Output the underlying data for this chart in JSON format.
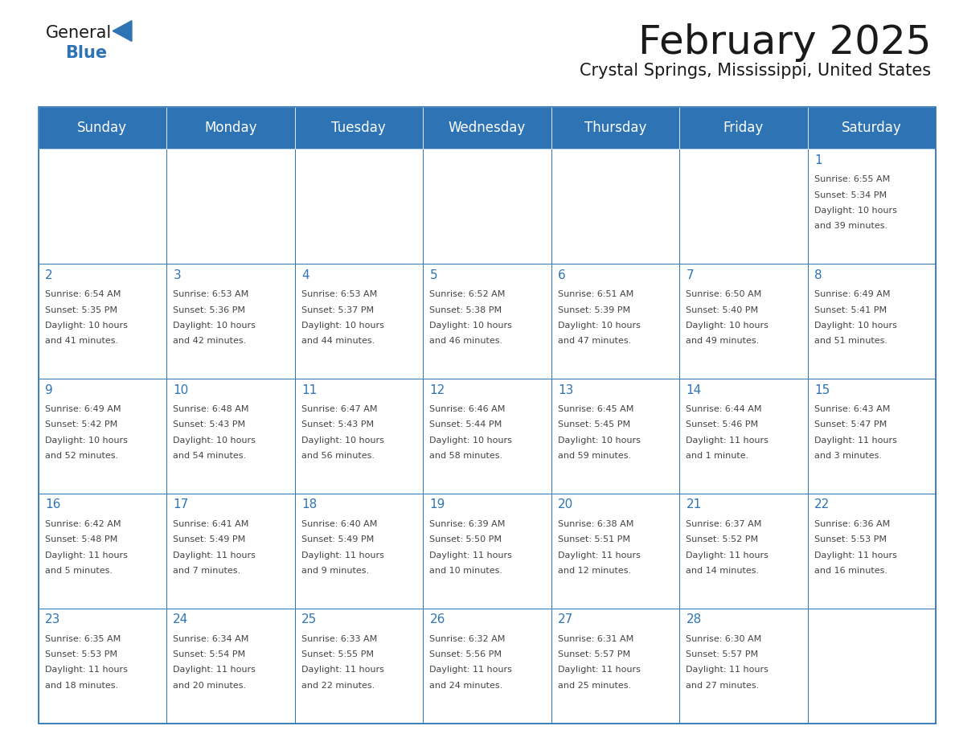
{
  "title": "February 2025",
  "subtitle": "Crystal Springs, Mississippi, United States",
  "header_color": "#2E74B5",
  "header_text_color": "#FFFFFF",
  "cell_bg_color": "#FFFFFF",
  "cell_border_color": "#2E74B5",
  "day_number_color": "#2E74B5",
  "info_text_color": "#444444",
  "days_of_week": [
    "Sunday",
    "Monday",
    "Tuesday",
    "Wednesday",
    "Thursday",
    "Friday",
    "Saturday"
  ],
  "logo_color": "#2E74B5",
  "calendar_data": [
    [
      null,
      null,
      null,
      null,
      null,
      null,
      {
        "day": 1,
        "sunrise": "6:55 AM",
        "sunset": "5:34 PM",
        "daylight_l1": "Daylight: 10 hours",
        "daylight_l2": "and 39 minutes."
      }
    ],
    [
      {
        "day": 2,
        "sunrise": "6:54 AM",
        "sunset": "5:35 PM",
        "daylight_l1": "Daylight: 10 hours",
        "daylight_l2": "and 41 minutes."
      },
      {
        "day": 3,
        "sunrise": "6:53 AM",
        "sunset": "5:36 PM",
        "daylight_l1": "Daylight: 10 hours",
        "daylight_l2": "and 42 minutes."
      },
      {
        "day": 4,
        "sunrise": "6:53 AM",
        "sunset": "5:37 PM",
        "daylight_l1": "Daylight: 10 hours",
        "daylight_l2": "and 44 minutes."
      },
      {
        "day": 5,
        "sunrise": "6:52 AM",
        "sunset": "5:38 PM",
        "daylight_l1": "Daylight: 10 hours",
        "daylight_l2": "and 46 minutes."
      },
      {
        "day": 6,
        "sunrise": "6:51 AM",
        "sunset": "5:39 PM",
        "daylight_l1": "Daylight: 10 hours",
        "daylight_l2": "and 47 minutes."
      },
      {
        "day": 7,
        "sunrise": "6:50 AM",
        "sunset": "5:40 PM",
        "daylight_l1": "Daylight: 10 hours",
        "daylight_l2": "and 49 minutes."
      },
      {
        "day": 8,
        "sunrise": "6:49 AM",
        "sunset": "5:41 PM",
        "daylight_l1": "Daylight: 10 hours",
        "daylight_l2": "and 51 minutes."
      }
    ],
    [
      {
        "day": 9,
        "sunrise": "6:49 AM",
        "sunset": "5:42 PM",
        "daylight_l1": "Daylight: 10 hours",
        "daylight_l2": "and 52 minutes."
      },
      {
        "day": 10,
        "sunrise": "6:48 AM",
        "sunset": "5:43 PM",
        "daylight_l1": "Daylight: 10 hours",
        "daylight_l2": "and 54 minutes."
      },
      {
        "day": 11,
        "sunrise": "6:47 AM",
        "sunset": "5:43 PM",
        "daylight_l1": "Daylight: 10 hours",
        "daylight_l2": "and 56 minutes."
      },
      {
        "day": 12,
        "sunrise": "6:46 AM",
        "sunset": "5:44 PM",
        "daylight_l1": "Daylight: 10 hours",
        "daylight_l2": "and 58 minutes."
      },
      {
        "day": 13,
        "sunrise": "6:45 AM",
        "sunset": "5:45 PM",
        "daylight_l1": "Daylight: 10 hours",
        "daylight_l2": "and 59 minutes."
      },
      {
        "day": 14,
        "sunrise": "6:44 AM",
        "sunset": "5:46 PM",
        "daylight_l1": "Daylight: 11 hours",
        "daylight_l2": "and 1 minute."
      },
      {
        "day": 15,
        "sunrise": "6:43 AM",
        "sunset": "5:47 PM",
        "daylight_l1": "Daylight: 11 hours",
        "daylight_l2": "and 3 minutes."
      }
    ],
    [
      {
        "day": 16,
        "sunrise": "6:42 AM",
        "sunset": "5:48 PM",
        "daylight_l1": "Daylight: 11 hours",
        "daylight_l2": "and 5 minutes."
      },
      {
        "day": 17,
        "sunrise": "6:41 AM",
        "sunset": "5:49 PM",
        "daylight_l1": "Daylight: 11 hours",
        "daylight_l2": "and 7 minutes."
      },
      {
        "day": 18,
        "sunrise": "6:40 AM",
        "sunset": "5:49 PM",
        "daylight_l1": "Daylight: 11 hours",
        "daylight_l2": "and 9 minutes."
      },
      {
        "day": 19,
        "sunrise": "6:39 AM",
        "sunset": "5:50 PM",
        "daylight_l1": "Daylight: 11 hours",
        "daylight_l2": "and 10 minutes."
      },
      {
        "day": 20,
        "sunrise": "6:38 AM",
        "sunset": "5:51 PM",
        "daylight_l1": "Daylight: 11 hours",
        "daylight_l2": "and 12 minutes."
      },
      {
        "day": 21,
        "sunrise": "6:37 AM",
        "sunset": "5:52 PM",
        "daylight_l1": "Daylight: 11 hours",
        "daylight_l2": "and 14 minutes."
      },
      {
        "day": 22,
        "sunrise": "6:36 AM",
        "sunset": "5:53 PM",
        "daylight_l1": "Daylight: 11 hours",
        "daylight_l2": "and 16 minutes."
      }
    ],
    [
      {
        "day": 23,
        "sunrise": "6:35 AM",
        "sunset": "5:53 PM",
        "daylight_l1": "Daylight: 11 hours",
        "daylight_l2": "and 18 minutes."
      },
      {
        "day": 24,
        "sunrise": "6:34 AM",
        "sunset": "5:54 PM",
        "daylight_l1": "Daylight: 11 hours",
        "daylight_l2": "and 20 minutes."
      },
      {
        "day": 25,
        "sunrise": "6:33 AM",
        "sunset": "5:55 PM",
        "daylight_l1": "Daylight: 11 hours",
        "daylight_l2": "and 22 minutes."
      },
      {
        "day": 26,
        "sunrise": "6:32 AM",
        "sunset": "5:56 PM",
        "daylight_l1": "Daylight: 11 hours",
        "daylight_l2": "and 24 minutes."
      },
      {
        "day": 27,
        "sunrise": "6:31 AM",
        "sunset": "5:57 PM",
        "daylight_l1": "Daylight: 11 hours",
        "daylight_l2": "and 25 minutes."
      },
      {
        "day": 28,
        "sunrise": "6:30 AM",
        "sunset": "5:57 PM",
        "daylight_l1": "Daylight: 11 hours",
        "daylight_l2": "and 27 minutes."
      },
      null
    ]
  ]
}
